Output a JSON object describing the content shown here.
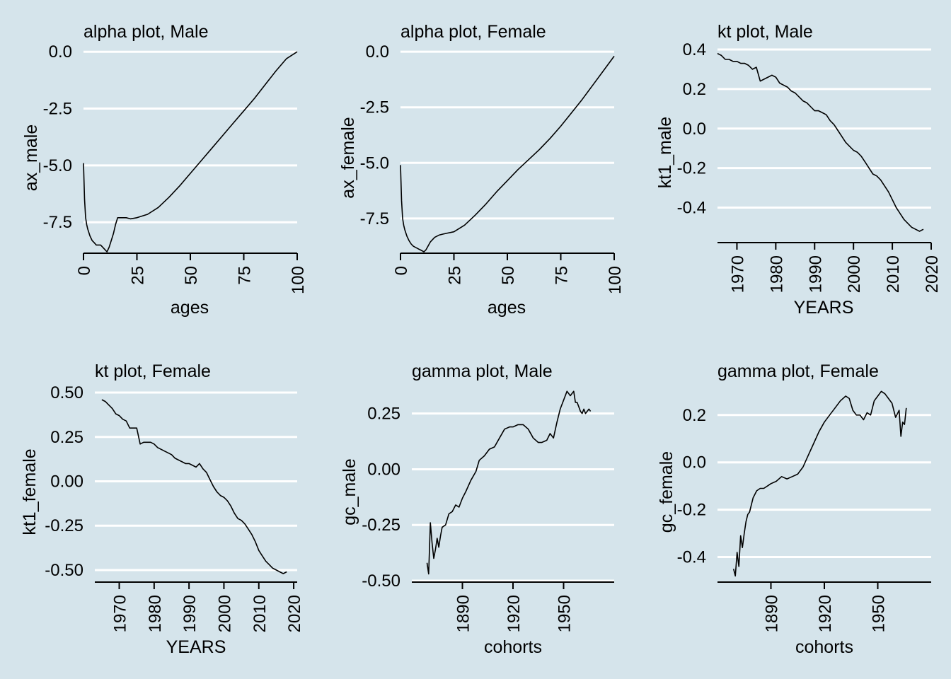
{
  "chart_data": [
    {
      "type": "line",
      "title": "alpha plot, Male",
      "xlabel": "ages",
      "ylabel": "ax_male",
      "xlim": [
        0,
        100
      ],
      "ylim": [
        -8.8,
        0.1
      ],
      "xticks": [
        0,
        25,
        50,
        75,
        100
      ],
      "xtick_labels": [
        "0",
        "25",
        "50",
        "75",
        "100"
      ],
      "yticks": [
        0,
        -2.5,
        -5,
        -7.5
      ],
      "ytick_labels": [
        "0.0",
        "-2.5",
        "-5.0",
        "-7.5"
      ],
      "grid": "horizontal",
      "colors": {
        "background": "#d5e4eb",
        "grid": "#ffffff",
        "line": "#000000"
      },
      "x": [
        0,
        0.5,
        1,
        1.5,
        2,
        3,
        4,
        5,
        6,
        7,
        8,
        9,
        10,
        11,
        12,
        13,
        14,
        15,
        16,
        17,
        18,
        20,
        22,
        25,
        30,
        35,
        40,
        45,
        50,
        55,
        60,
        65,
        70,
        75,
        80,
        85,
        90,
        95,
        100
      ],
      "y": [
        -4.9,
        -6.5,
        -7.3,
        -7.6,
        -7.8,
        -8.1,
        -8.3,
        -8.4,
        -8.5,
        -8.5,
        -8.5,
        -8.6,
        -8.7,
        -8.8,
        -8.6,
        -8.3,
        -8.0,
        -7.6,
        -7.3,
        -7.3,
        -7.3,
        -7.3,
        -7.35,
        -7.3,
        -7.15,
        -6.85,
        -6.4,
        -5.9,
        -5.35,
        -4.8,
        -4.25,
        -3.7,
        -3.15,
        -2.6,
        -2.05,
        -1.45,
        -0.85,
        -0.3,
        0.0
      ]
    },
    {
      "type": "line",
      "title": "alpha plot, Female",
      "xlabel": "ages",
      "ylabel": "ax_female",
      "xlim": [
        0,
        100
      ],
      "ylim": [
        -9.0,
        0.1
      ],
      "xticks": [
        0,
        25,
        50,
        75,
        100
      ],
      "xtick_labels": [
        "0",
        "25",
        "50",
        "75",
        "100"
      ],
      "yticks": [
        0,
        -2.5,
        -5,
        -7.5
      ],
      "ytick_labels": [
        "0.0",
        "-2.5",
        "-5.0",
        "-7.5"
      ],
      "grid": "horizontal",
      "colors": {
        "background": "#d5e4eb",
        "grid": "#ffffff",
        "line": "#000000"
      },
      "x": [
        0,
        0.5,
        1,
        1.5,
        2,
        3,
        4,
        5,
        6,
        7,
        8,
        9,
        10,
        11,
        12,
        14,
        16,
        18,
        20,
        25,
        30,
        35,
        40,
        45,
        50,
        55,
        60,
        65,
        70,
        75,
        80,
        85,
        90,
        95,
        100
      ],
      "y": [
        -5.1,
        -6.7,
        -7.5,
        -7.8,
        -8.0,
        -8.3,
        -8.5,
        -8.65,
        -8.75,
        -8.8,
        -8.85,
        -8.9,
        -8.95,
        -9.0,
        -8.9,
        -8.55,
        -8.35,
        -8.25,
        -8.2,
        -8.1,
        -7.8,
        -7.35,
        -6.85,
        -6.3,
        -5.8,
        -5.3,
        -4.85,
        -4.4,
        -3.9,
        -3.35,
        -2.75,
        -2.15,
        -1.5,
        -0.85,
        -0.2
      ]
    },
    {
      "type": "line",
      "title": "kt plot, Male",
      "xlabel": "YEARS",
      "ylabel": "kt1_male",
      "xlim": [
        1965,
        2020
      ],
      "ylim": [
        -0.57,
        0.4
      ],
      "xticks": [
        1970,
        1980,
        1990,
        2000,
        2010,
        2020
      ],
      "xtick_labels": [
        "1970",
        "1980",
        "1990",
        "2000",
        "2010",
        "2020"
      ],
      "yticks": [
        0.4,
        0.2,
        0.0,
        -0.2,
        -0.4
      ],
      "ytick_labels": [
        "0.4",
        "0.2",
        "0.0",
        "-0.2",
        "-0.4"
      ],
      "grid": "horizontal",
      "colors": {
        "background": "#d5e4eb",
        "grid": "#ffffff",
        "line": "#000000"
      },
      "x": [
        1965,
        1966,
        1967,
        1968,
        1969,
        1970,
        1971,
        1972,
        1973,
        1974,
        1975,
        1976,
        1977,
        1978,
        1979,
        1980,
        1981,
        1982,
        1983,
        1984,
        1985,
        1986,
        1987,
        1988,
        1989,
        1990,
        1991,
        1992,
        1993,
        1994,
        1995,
        1996,
        1997,
        1998,
        1999,
        2000,
        2001,
        2002,
        2003,
        2004,
        2005,
        2006,
        2007,
        2008,
        2009,
        2010,
        2011,
        2012,
        2013,
        2014,
        2015,
        2016,
        2017,
        2018
      ],
      "y": [
        0.38,
        0.37,
        0.35,
        0.35,
        0.34,
        0.34,
        0.33,
        0.33,
        0.32,
        0.3,
        0.31,
        0.24,
        0.25,
        0.26,
        0.27,
        0.26,
        0.23,
        0.22,
        0.21,
        0.19,
        0.18,
        0.16,
        0.14,
        0.13,
        0.11,
        0.09,
        0.09,
        0.08,
        0.07,
        0.04,
        0.02,
        -0.01,
        -0.04,
        -0.07,
        -0.09,
        -0.11,
        -0.12,
        -0.14,
        -0.17,
        -0.2,
        -0.23,
        -0.24,
        -0.26,
        -0.29,
        -0.32,
        -0.36,
        -0.4,
        -0.43,
        -0.46,
        -0.48,
        -0.5,
        -0.51,
        -0.52,
        -0.51
      ]
    },
    {
      "type": "line",
      "title": "kt plot, Female",
      "xlabel": "YEARS",
      "ylabel": "kt1_female",
      "xlim": [
        1963,
        2021
      ],
      "ylim": [
        -0.56,
        0.52
      ],
      "xticks": [
        1970,
        1980,
        1990,
        2000,
        2010,
        2020
      ],
      "xtick_labels": [
        "1970",
        "1980",
        "1990",
        "2000",
        "2010",
        "2020"
      ],
      "yticks": [
        0.5,
        0.25,
        0.0,
        -0.25,
        -0.5
      ],
      "ytick_labels": [
        "0.50",
        "0.25",
        "0.00",
        "-0.25",
        "-0.50"
      ],
      "grid": "horizontal",
      "colors": {
        "background": "#d5e4eb",
        "grid": "#ffffff",
        "line": "#000000"
      },
      "x": [
        1965,
        1966,
        1967,
        1968,
        1969,
        1970,
        1971,
        1972,
        1973,
        1974,
        1975,
        1976,
        1977,
        1978,
        1979,
        1980,
        1981,
        1982,
        1983,
        1984,
        1985,
        1986,
        1987,
        1988,
        1989,
        1990,
        1991,
        1992,
        1993,
        1994,
        1995,
        1996,
        1997,
        1998,
        1999,
        2000,
        2001,
        2002,
        2003,
        2004,
        2005,
        2006,
        2007,
        2008,
        2009,
        2010,
        2011,
        2012,
        2013,
        2014,
        2015,
        2016,
        2017,
        2018
      ],
      "y": [
        0.46,
        0.45,
        0.43,
        0.41,
        0.38,
        0.37,
        0.35,
        0.34,
        0.3,
        0.3,
        0.3,
        0.21,
        0.22,
        0.22,
        0.22,
        0.21,
        0.19,
        0.18,
        0.17,
        0.16,
        0.15,
        0.13,
        0.12,
        0.11,
        0.1,
        0.1,
        0.09,
        0.08,
        0.1,
        0.07,
        0.05,
        0.01,
        -0.03,
        -0.06,
        -0.08,
        -0.09,
        -0.11,
        -0.14,
        -0.18,
        -0.21,
        -0.22,
        -0.24,
        -0.27,
        -0.3,
        -0.34,
        -0.39,
        -0.42,
        -0.45,
        -0.47,
        -0.49,
        -0.5,
        -0.51,
        -0.52,
        -0.51
      ]
    },
    {
      "type": "line",
      "title": "gamma plot, Male",
      "xlabel": "cohorts",
      "ylabel": "gc_male",
      "xlim": [
        1860,
        1980
      ],
      "ylim": [
        -0.5,
        0.36
      ],
      "xticks": [
        1890,
        1920,
        1950
      ],
      "xtick_labels": [
        "1890",
        "1920",
        "1950"
      ],
      "yticks": [
        0.25,
        0.0,
        -0.25,
        -0.5
      ],
      "ytick_labels": [
        "0.25",
        "0.00",
        "-0.25",
        "-0.50"
      ],
      "grid": "horizontal",
      "colors": {
        "background": "#d5e4eb",
        "grid": "#ffffff",
        "line": "#000000"
      },
      "x": [
        1869,
        1870,
        1871,
        1872,
        1873,
        1874,
        1875,
        1876,
        1877,
        1878,
        1880,
        1882,
        1884,
        1886,
        1888,
        1890,
        1892,
        1895,
        1898,
        1900,
        1903,
        1906,
        1909,
        1912,
        1915,
        1918,
        1920,
        1923,
        1926,
        1929,
        1932,
        1935,
        1937,
        1940,
        1942,
        1944,
        1946,
        1948,
        1950,
        1952,
        1954,
        1956,
        1957,
        1958,
        1959,
        1960,
        1961,
        1962,
        1963,
        1964,
        1965,
        1966
      ],
      "y": [
        -0.42,
        -0.47,
        -0.24,
        -0.33,
        -0.4,
        -0.36,
        -0.31,
        -0.35,
        -0.3,
        -0.26,
        -0.25,
        -0.2,
        -0.19,
        -0.16,
        -0.17,
        -0.13,
        -0.1,
        -0.05,
        -0.01,
        0.04,
        0.06,
        0.09,
        0.1,
        0.14,
        0.18,
        0.19,
        0.19,
        0.2,
        0.2,
        0.18,
        0.14,
        0.12,
        0.12,
        0.13,
        0.16,
        0.14,
        0.21,
        0.27,
        0.31,
        0.35,
        0.33,
        0.35,
        0.3,
        0.3,
        0.28,
        0.26,
        0.25,
        0.27,
        0.25,
        0.26,
        0.27,
        0.26
      ]
    },
    {
      "type": "line",
      "title": "gamma plot, Female",
      "xlabel": "cohorts",
      "ylabel": "gc_female",
      "xlim": [
        1860,
        1980
      ],
      "ylim": [
        -0.5,
        0.31
      ],
      "xticks": [
        1890,
        1920,
        1950
      ],
      "xtick_labels": [
        "1890",
        "1920",
        "1950"
      ],
      "yticks": [
        0.2,
        0.0,
        -0.2,
        -0.4
      ],
      "ytick_labels": [
        "0.2",
        "0.0",
        "-0.2",
        "-0.4"
      ],
      "grid": "horizontal",
      "colors": {
        "background": "#d5e4eb",
        "grid": "#ffffff",
        "line": "#000000"
      },
      "x": [
        1869,
        1870,
        1871,
        1872,
        1873,
        1874,
        1875,
        1876,
        1877,
        1878,
        1880,
        1882,
        1884,
        1886,
        1888,
        1890,
        1893,
        1896,
        1899,
        1902,
        1905,
        1908,
        1911,
        1914,
        1917,
        1920,
        1923,
        1926,
        1929,
        1932,
        1934,
        1936,
        1938,
        1940,
        1942,
        1944,
        1946,
        1948,
        1950,
        1952,
        1954,
        1956,
        1958,
        1960,
        1962,
        1963,
        1964,
        1965,
        1966
      ],
      "y": [
        -0.45,
        -0.48,
        -0.38,
        -0.44,
        -0.31,
        -0.36,
        -0.3,
        -0.25,
        -0.22,
        -0.21,
        -0.15,
        -0.12,
        -0.11,
        -0.11,
        -0.1,
        -0.09,
        -0.08,
        -0.06,
        -0.07,
        -0.06,
        -0.05,
        -0.02,
        0.03,
        0.08,
        0.13,
        0.17,
        0.2,
        0.23,
        0.26,
        0.28,
        0.27,
        0.22,
        0.2,
        0.2,
        0.18,
        0.21,
        0.2,
        0.26,
        0.28,
        0.3,
        0.29,
        0.27,
        0.25,
        0.19,
        0.22,
        0.11,
        0.17,
        0.16,
        0.23
      ]
    }
  ]
}
